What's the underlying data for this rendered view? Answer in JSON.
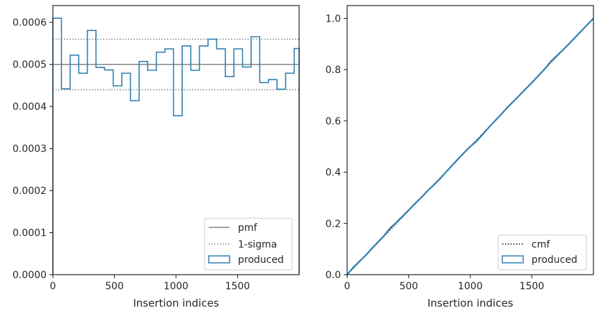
{
  "chart_data": [
    {
      "type": "line",
      "xlabel": "Insertion indices",
      "ylabel": "",
      "xlim": [
        0,
        2000
      ],
      "ylim": [
        0,
        0.00064
      ],
      "xticks": [
        0,
        500,
        1000,
        1500
      ],
      "xtick_labels": [
        "0",
        "500",
        "1000",
        "1500"
      ],
      "yticks": [
        0,
        0.0001,
        0.0002,
        0.0003,
        0.0004,
        0.0005,
        0.0006
      ],
      "ytick_labels": [
        "0.0000",
        "0.0001",
        "0.0002",
        "0.0003",
        "0.0004",
        "0.0005",
        "0.0006"
      ],
      "legend_position": "lower-right",
      "series": [
        {
          "name": "pmf",
          "style": "solid",
          "color": "#808080",
          "y": 0.0005
        },
        {
          "name": "1-sigma",
          "style": "dotted",
          "color": "#808080",
          "y": [
            0.00044,
            0.00056
          ]
        },
        {
          "name": "produced",
          "style": "step",
          "color": "#2f7fb0",
          "bin_edges": [
            0,
            70,
            140,
            210,
            280,
            350,
            420,
            490,
            560,
            630,
            700,
            770,
            840,
            910,
            980,
            1050,
            1120,
            1190,
            1260,
            1330,
            1400,
            1470,
            1540,
            1610,
            1680,
            1750,
            1820,
            1890,
            1960,
            2000
          ],
          "values": [
            0.00061,
            0.000442,
            0.000522,
            0.000479,
            0.000581,
            0.000493,
            0.000487,
            0.000449,
            0.000479,
            0.000414,
            0.000507,
            0.000486,
            0.000529,
            0.000537,
            0.000378,
            0.000544,
            0.000486,
            0.000544,
            0.00056,
            0.000537,
            0.000471,
            0.000537,
            0.000494,
            0.000566,
            0.000457,
            0.000464,
            0.000441,
            0.000479,
            0.000538
          ]
        }
      ]
    },
    {
      "type": "line",
      "xlabel": "Insertion indices",
      "ylabel": "",
      "xlim": [
        0,
        2000
      ],
      "ylim": [
        0,
        1.05
      ],
      "xticks": [
        0,
        500,
        1000,
        1500
      ],
      "xtick_labels": [
        "0",
        "500",
        "1000",
        "1500"
      ],
      "yticks": [
        0,
        0.2,
        0.4,
        0.6,
        0.8,
        1.0
      ],
      "ytick_labels": [
        "0.0",
        "0.2",
        "0.4",
        "0.6",
        "0.8",
        "1.0"
      ],
      "legend_position": "lower-right",
      "series": [
        {
          "name": "cmf",
          "style": "dotted",
          "color": "#000000",
          "points": [
            [
              0,
              0
            ],
            [
              2000,
              1.0
            ]
          ]
        },
        {
          "name": "produced",
          "style": "step",
          "color": "#2f7fb0",
          "points": [
            [
              0,
              0
            ],
            [
              50,
              0.028
            ],
            [
              100,
              0.052
            ],
            [
              150,
              0.075
            ],
            [
              200,
              0.102
            ],
            [
              250,
              0.127
            ],
            [
              300,
              0.152
            ],
            [
              350,
              0.182
            ],
            [
              400,
              0.204
            ],
            [
              450,
              0.228
            ],
            [
              500,
              0.252
            ],
            [
              550,
              0.277
            ],
            [
              600,
              0.3
            ],
            [
              650,
              0.326
            ],
            [
              700,
              0.348
            ],
            [
              750,
              0.372
            ],
            [
              800,
              0.399
            ],
            [
              850,
              0.425
            ],
            [
              900,
              0.451
            ],
            [
              950,
              0.476
            ],
            [
              1000,
              0.5
            ],
            [
              1050,
              0.52
            ],
            [
              1100,
              0.547
            ],
            [
              1150,
              0.574
            ],
            [
              1200,
              0.6
            ],
            [
              1250,
              0.625
            ],
            [
              1300,
              0.652
            ],
            [
              1350,
              0.676
            ],
            [
              1400,
              0.7
            ],
            [
              1450,
              0.725
            ],
            [
              1500,
              0.749
            ],
            [
              1550,
              0.775
            ],
            [
              1600,
              0.8
            ],
            [
              1650,
              0.83
            ],
            [
              1700,
              0.853
            ],
            [
              1750,
              0.876
            ],
            [
              1800,
              0.9
            ],
            [
              1850,
              0.925
            ],
            [
              1900,
              0.95
            ],
            [
              1950,
              0.975
            ],
            [
              2000,
              1.0
            ]
          ]
        }
      ]
    }
  ]
}
